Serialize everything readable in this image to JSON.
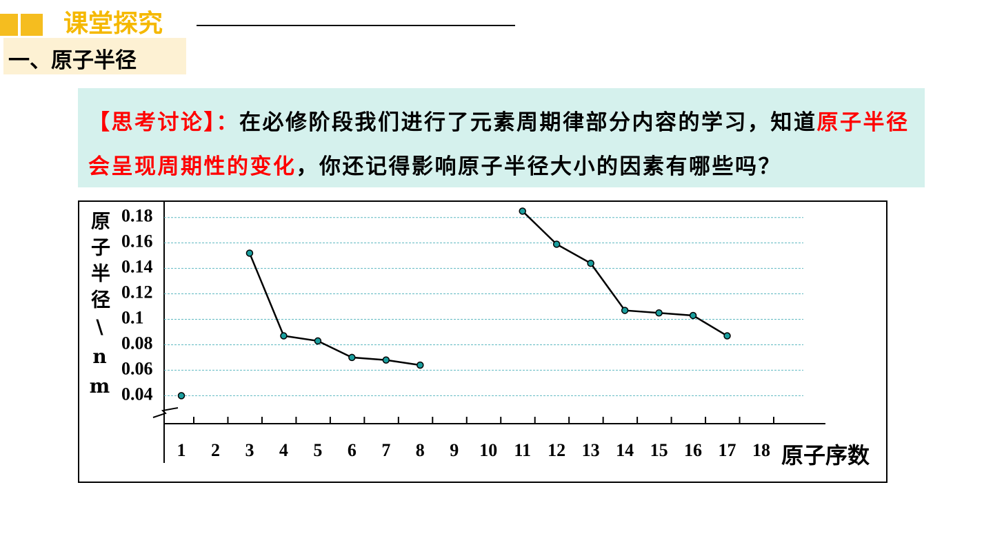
{
  "header": {
    "title": "课堂探究",
    "section": "一、原子半径"
  },
  "discussion": {
    "parts": [
      {
        "text": "【思考讨论】：",
        "color": "#ff0000"
      },
      {
        "text": "在必修阶段我们进行了元素周期律部分内容的学习，知道",
        "color": "#000000"
      },
      {
        "text": "原子半径会呈现周期性的变化",
        "color": "#ff0000"
      },
      {
        "text": "，你还记得影响原子半径大小的因素有哪些吗？",
        "color": "#000000"
      }
    ]
  },
  "chart_data": {
    "type": "line",
    "y_label": "原子半径\\nm",
    "x_label": "原子序数",
    "x": [
      1,
      2,
      3,
      4,
      5,
      6,
      7,
      8,
      9,
      10,
      11,
      12,
      13,
      14,
      15,
      16,
      17,
      18
    ],
    "xlim": [
      1,
      18
    ],
    "series": [
      {
        "color": "#000000",
        "marker_color": "#1a9e9e",
        "values": [
          0.04,
          null,
          0.152,
          0.087,
          0.083,
          0.07,
          0.068,
          0.064,
          null,
          null,
          0.185,
          0.159,
          0.144,
          0.107,
          0.105,
          0.103,
          0.087,
          null
        ]
      }
    ],
    "ylim": [
      0.018,
      0.195
    ],
    "yticks": [
      0.04,
      0.06,
      0.08,
      0.1,
      0.12,
      0.14,
      0.16,
      0.18
    ],
    "grid": true
  }
}
